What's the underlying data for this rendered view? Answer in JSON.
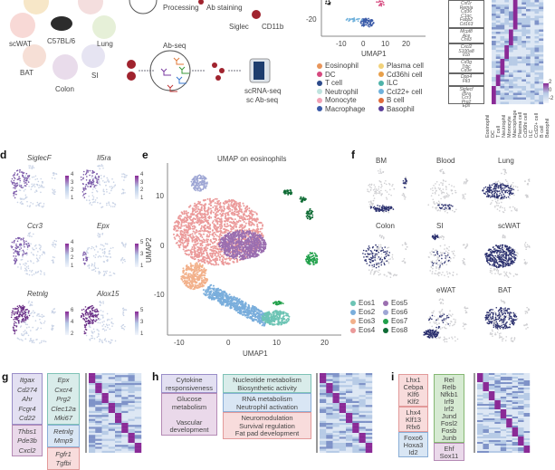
{
  "panel_a": {
    "tissues": [
      "scWAT",
      "C57BL/6",
      "Lung",
      "BAT",
      "Colon",
      "SI"
    ],
    "steps": {
      "processing": "Processing",
      "staining": "Ab staining",
      "siglec": "Siglec",
      "cd11b": "CD11b",
      "abseq": "Ab-seq",
      "out1": "scRNA-seq",
      "out2": "sc Ab-seq"
    }
  },
  "panel_c": {
    "xlabel": "UMAP1",
    "yticks": [
      "-20"
    ],
    "xticks": [
      "-10",
      "0",
      "10",
      "20"
    ],
    "legend": [
      {
        "name": "Eosinophil",
        "color": "#e8955a"
      },
      {
        "name": "Plasma cell",
        "color": "#f2d27a"
      },
      {
        "name": "DC",
        "color": "#d6487e"
      },
      {
        "name": "Cd36hi cell",
        "color": "#e8a04a"
      },
      {
        "name": "T cell",
        "color": "#2c4a8a"
      },
      {
        "name": "ILC",
        "color": "#4fb3a9"
      },
      {
        "name": "Neutrophil",
        "color": "#bfe3de"
      },
      {
        "name": "Ccl22+ cell",
        "color": "#6fb1dc"
      },
      {
        "name": "Monocyte",
        "color": "#f0a0b4"
      },
      {
        "name": "B cell",
        "color": "#e06a3a"
      },
      {
        "name": "Macrophage",
        "color": "#3a5aa8"
      },
      {
        "name": "Basophil",
        "color": "#5b3f99"
      }
    ]
  },
  "panel_heat": {
    "gene_groups": [
      [
        "Csf1r",
        "Retnla",
        "Cd36",
        "C1qc",
        "Fabp2",
        "Cd163"
      ],
      [
        "Mcpt8",
        "Ace",
        "Chil3"
      ],
      [
        "Cxcl2",
        "S100a8",
        "Il1b"
      ],
      [
        "Cd3g",
        "Trbc",
        "Cd3e"
      ],
      [
        "Dpp4",
        "Flt3"
      ],
      [
        "Siglecf",
        "Il5ra",
        "Ccr3",
        "Prg2",
        "Epx"
      ]
    ],
    "columns": [
      "Eosinophil",
      "DC",
      "T cell",
      "Neutrophil",
      "Monocyte",
      "Macrophage",
      "Plasma cell",
      "Cd36hi cell",
      "ILC",
      "Ccl22+ cell",
      "B cell",
      "Basophil"
    ],
    "colorbar": [
      "2",
      "0",
      "-2"
    ],
    "colors": {
      "low": "#f2f5fb",
      "mid": "#a9c3e2",
      "high": "#8a2a96"
    }
  },
  "panel_d": {
    "label": "d",
    "plots": [
      {
        "gene": "SiglecF",
        "scale": [
          "4",
          "3",
          "2",
          "1"
        ]
      },
      {
        "gene": "Il5ra",
        "scale": [
          "4",
          "3",
          "2",
          "1"
        ]
      },
      {
        "gene": "Ccr3",
        "scale": [
          "4",
          "3",
          "2",
          "1"
        ]
      },
      {
        "gene": "Epx",
        "scale": [
          "5",
          "3",
          "1"
        ]
      },
      {
        "gene": "Retnlg",
        "scale": [
          "6",
          "4",
          "2"
        ]
      },
      {
        "gene": "Alox15",
        "scale": [
          "5",
          "3",
          "1"
        ]
      }
    ]
  },
  "panel_e": {
    "label": "e",
    "title": "UMAP on eosinophils",
    "xlabel": "UMAP1",
    "ylabel": "UMAP2",
    "xticks": [
      "-10",
      "0",
      "10",
      "20"
    ],
    "yticks": [
      "10",
      "0",
      "-10"
    ],
    "clusters": [
      {
        "name": "Eos1",
        "color": "#6cc4b4"
      },
      {
        "name": "Eos2",
        "color": "#7aaedc"
      },
      {
        "name": "Eos3",
        "color": "#f2b08a"
      },
      {
        "name": "Eos4",
        "color": "#eb9a9a"
      },
      {
        "name": "Eos5",
        "color": "#9b6fb0"
      },
      {
        "name": "Eos6",
        "color": "#9ea6d4"
      },
      {
        "name": "Eos7",
        "color": "#20a04a"
      },
      {
        "name": "Eos8",
        "color": "#0e6b34"
      }
    ]
  },
  "panel_f": {
    "label": "f",
    "tissues": [
      "BM",
      "Blood",
      "Lung",
      "Colon",
      "SI",
      "scWAT",
      "eWAT",
      "BAT"
    ],
    "highlight_color": "#2a2f6e",
    "background_color": "#cfcfd2"
  },
  "panel_g": {
    "label": "g",
    "col1": [
      [
        "Itgax",
        "Cd274",
        "Ahr",
        "Fcgr4",
        "Cd22"
      ],
      [
        "Thbs1",
        "Pde3b",
        "Cxcl2"
      ]
    ],
    "col2": [
      [
        "Epx",
        "Cxcr4",
        "Prg2",
        "Clec12a",
        "Mki67"
      ],
      [
        "Retnlg",
        "Mmp9"
      ],
      [
        "Fgfr1",
        "Tgfbi"
      ]
    ]
  },
  "panel_h": {
    "label": "h",
    "col1": [
      [
        "Cytokine",
        "responsiveness"
      ],
      [
        "Glucose",
        "metabolism",
        "",
        "Vascular",
        "development"
      ]
    ],
    "col2": [
      [
        "Nucleotide metabolism",
        "Biosynthetic activity"
      ],
      [
        "RNA metabolism",
        "Neutrophil activation"
      ],
      [
        "Neuromodulation",
        "Survival regulation",
        "Fat pad development"
      ]
    ]
  },
  "panel_i": {
    "label": "i",
    "col1": [
      [
        "Lhx1",
        "Cebpa",
        "Klf6",
        "Klf2"
      ],
      [
        "Lhx4",
        "Klf13",
        "Rfx6"
      ],
      [
        "Foxo6",
        "Hoxa3",
        "Id2"
      ]
    ],
    "col2": [
      [
        "Rel",
        "Relb",
        "Nfkb1",
        "Irf9",
        "Irf2",
        "Jund",
        "Fosl2",
        "Fosb",
        "Junb"
      ],
      [
        "Ehf",
        "Sox11"
      ]
    ]
  }
}
